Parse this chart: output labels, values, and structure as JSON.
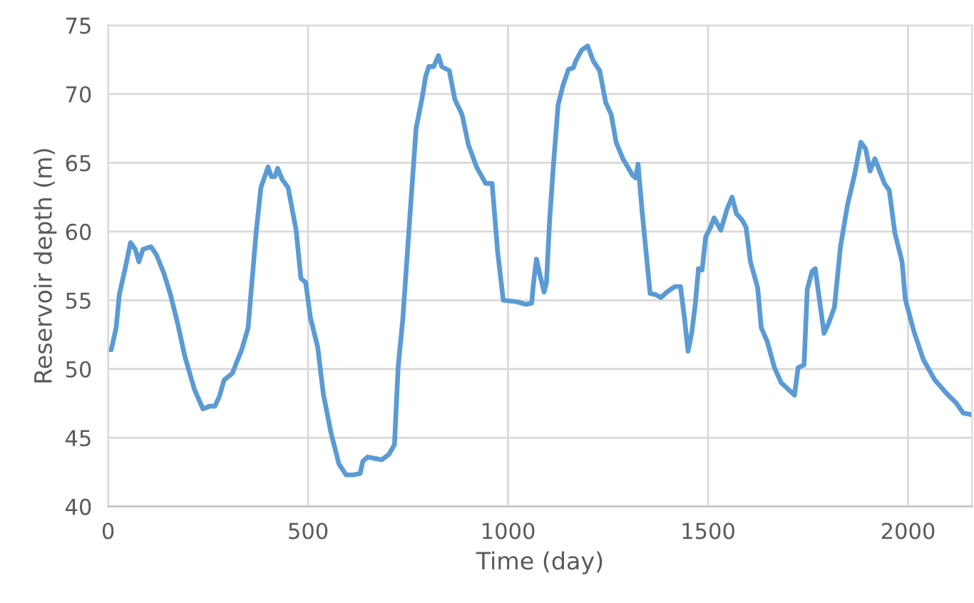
{
  "chart_data": {
    "type": "line",
    "xlabel": "Time (day)",
    "ylabel": "Reservoir depth (m)",
    "xlim": [
      0,
      2160
    ],
    "ylim": [
      40,
      75
    ],
    "xticks": [
      0,
      500,
      1000,
      1500,
      2000
    ],
    "yticks": [
      40,
      45,
      50,
      55,
      60,
      65,
      70,
      75
    ],
    "grid": true,
    "line_style": "solid",
    "marker": "none",
    "series": [
      {
        "color": "#5b9bd5",
        "x": [
          0,
          8,
          20,
          28,
          44,
          56,
          68,
          77,
          87,
          107,
          121,
          139,
          156,
          174,
          192,
          216,
          237,
          254,
          267,
          278,
          290,
          311,
          320,
          334,
          350,
          358,
          370,
          382,
          400,
          408,
          417,
          424,
          435,
          450,
          470,
          482,
          494,
          506,
          524,
          538,
          557,
          577,
          595,
          613,
          630,
          637,
          649,
          666,
          684,
          702,
          716,
          725,
          737,
          755,
          770,
          785,
          794,
          802,
          814,
          826,
          834,
          853,
          867,
          885,
          901,
          921,
          944,
          960,
          974,
          988,
          1021,
          1045,
          1059,
          1063,
          1071,
          1080,
          1090,
          1096,
          1104,
          1113,
          1125,
          1137,
          1151,
          1163,
          1169,
          1184,
          1199,
          1213,
          1229,
          1244,
          1258,
          1270,
          1287,
          1311,
          1319,
          1325,
          1335,
          1346,
          1355,
          1370,
          1382,
          1397,
          1417,
          1431,
          1441,
          1450,
          1459,
          1468,
          1476,
          1485,
          1494,
          1506,
          1515,
          1532,
          1547,
          1560,
          1571,
          1586,
          1595,
          1606,
          1624,
          1633,
          1648,
          1666,
          1683,
          1716,
          1725,
          1740,
          1748,
          1760,
          1768,
          1780,
          1790,
          1801,
          1816,
          1831,
          1849,
          1866,
          1882,
          1894,
          1905,
          1917,
          1929,
          1941,
          1953,
          1967,
          1985,
          1993,
          2014,
          2038,
          2067,
          2097,
          2121,
          2138,
          2155
        ],
        "values": [
          51.4,
          51.4,
          53.0,
          55.4,
          57.5,
          59.2,
          58.7,
          57.8,
          58.7,
          58.9,
          58.3,
          57.0,
          55.4,
          53.3,
          50.9,
          48.5,
          47.1,
          47.3,
          47.3,
          48.0,
          49.2,
          49.7,
          50.4,
          51.4,
          53.0,
          55.8,
          59.9,
          63.2,
          64.7,
          64.0,
          64.0,
          64.6,
          63.8,
          63.2,
          60.1,
          56.6,
          56.3,
          53.7,
          51.6,
          48.2,
          45.4,
          43.1,
          42.3,
          42.3,
          42.4,
          43.3,
          43.6,
          43.5,
          43.4,
          43.8,
          44.5,
          50.1,
          53.7,
          61.3,
          67.5,
          69.7,
          71.3,
          72.0,
          72.0,
          72.8,
          72.0,
          71.7,
          69.6,
          68.5,
          66.3,
          64.7,
          63.5,
          63.5,
          58.5,
          55.0,
          54.9,
          54.7,
          54.8,
          56.1,
          58.0,
          56.8,
          55.6,
          56.3,
          60.9,
          64.7,
          69.2,
          70.6,
          71.8,
          71.9,
          72.4,
          73.2,
          73.5,
          72.4,
          71.7,
          69.4,
          68.5,
          66.5,
          65.3,
          64.1,
          63.9,
          64.9,
          61.5,
          58.2,
          55.5,
          55.4,
          55.2,
          55.6,
          56.0,
          56.0,
          53.7,
          51.3,
          52.6,
          54.7,
          57.3,
          57.2,
          59.6,
          60.3,
          61.0,
          60.1,
          61.6,
          62.5,
          61.3,
          60.8,
          60.3,
          57.8,
          55.9,
          53.0,
          52.0,
          50.1,
          49.0,
          48.1,
          50.1,
          50.3,
          55.8,
          57.1,
          57.3,
          54.7,
          52.6,
          53.3,
          54.5,
          58.9,
          62.0,
          64.1,
          66.5,
          66.0,
          64.4,
          65.3,
          64.4,
          63.5,
          63.0,
          59.9,
          57.8,
          55.1,
          52.8,
          50.7,
          49.2,
          48.2,
          47.5,
          46.8,
          46.7
        ]
      }
    ]
  }
}
